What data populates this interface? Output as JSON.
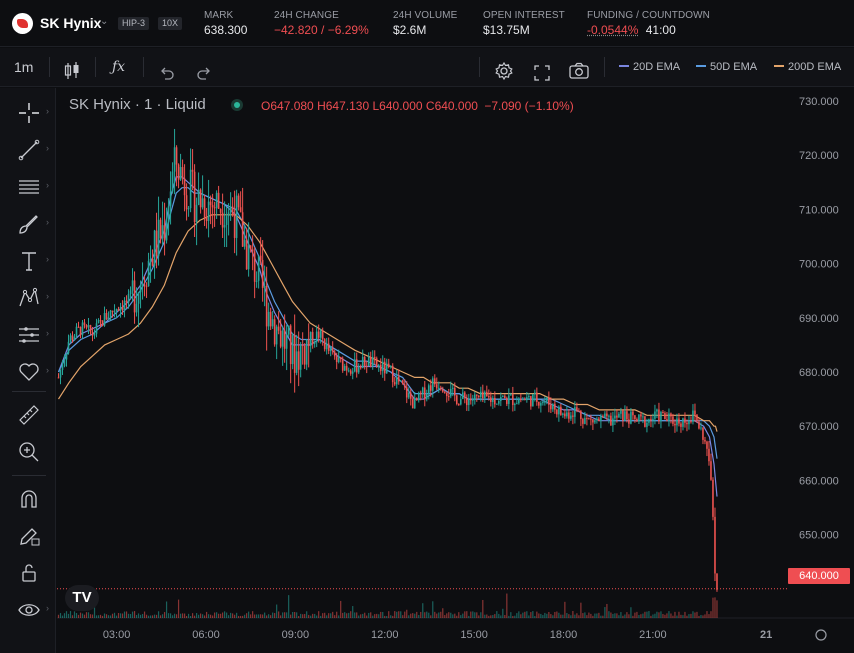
{
  "market": {
    "ticker": "SK Hynix",
    "dex_badge": "HIP-3",
    "leverage_badge": "10X",
    "mark_label": "MARK",
    "mark_value": "638.300",
    "change_label": "24H CHANGE",
    "change_value": "−42.820 / −6.29%",
    "volume_label": "24H VOLUME",
    "volume_value": "$2.6M",
    "oi_label": "OPEN INTEREST",
    "oi_value": "$13.75M",
    "funding_label": "FUNDING / COUNTDOWN",
    "funding_value": "-0.0544%",
    "countdown_value": "41:00"
  },
  "toolbar": {
    "interval": "1m",
    "indicators": [
      {
        "label": "20D EMA",
        "color": "#7b86e0"
      },
      {
        "label": "50D EMA",
        "color": "#5a9be0"
      },
      {
        "label": "200D EMA",
        "color": "#e3a46a"
      }
    ]
  },
  "chart_header": {
    "symbol_line": "SK Hynix · 1 · Liquid",
    "o_label": "O",
    "o_value": "647.080",
    "h_label": "H",
    "h_value": "647.130",
    "l_label": "L",
    "l_value": "640.000",
    "c_label": "C",
    "c_value": "640.000",
    "change": "−7.090 (−1.10%)",
    "logo_text": "TV"
  },
  "colors": {
    "up": "#26a69a",
    "down": "#ef5350",
    "ema20": "#7b86e0",
    "ema50": "#5a9be0",
    "ema200": "#e3a46a",
    "price_line": "#ef4e52"
  },
  "chart_data": {
    "type": "line",
    "title": "SK Hynix · 1 · Liquid",
    "xlabel": "",
    "ylabel": "",
    "x_ticks": [
      "03:00",
      "06:00",
      "09:00",
      "12:00",
      "15:00",
      "18:00",
      "21:00",
      "21"
    ],
    "y_ticks": [
      "730.000",
      "720.000",
      "710.000",
      "700.000",
      "690.000",
      "680.000",
      "670.000",
      "660.000",
      "650.000"
    ],
    "ylim": [
      634.6,
      732.4
    ],
    "xlim": [
      1.0,
      25.5
    ],
    "last_price": "640.000",
    "series": [
      {
        "name": "price",
        "x": [
          1.05,
          1.4,
          1.8,
          2.2,
          2.6,
          3.0,
          3.4,
          3.8,
          4.2,
          4.6,
          4.8,
          5.0,
          5.2,
          5.4,
          5.6,
          5.8,
          6.2,
          6.6,
          7.0,
          7.4,
          7.8,
          8.0,
          8.3,
          8.6,
          8.9,
          9.2,
          9.5,
          9.8,
          10.1,
          10.4,
          10.7,
          11.0,
          11.4,
          11.8,
          12.2,
          12.6,
          13.0,
          13.3,
          13.6,
          13.9,
          14.2,
          14.5,
          14.8,
          15.2,
          15.6,
          16.0,
          16.4,
          16.8,
          17.2,
          17.6,
          18.0,
          18.4,
          18.8,
          19.2,
          19.6,
          20.0,
          20.4,
          20.8,
          21.2,
          21.6,
          22.0,
          22.4,
          22.7,
          22.9,
          23.05,
          23.1,
          23.15
        ],
        "values": [
          679,
          686,
          688,
          687,
          690,
          692,
          693,
          697,
          702,
          707,
          714,
          719,
          716,
          714,
          712,
          712,
          711,
          711,
          709,
          702,
          697,
          693,
          689,
          686,
          683,
          684,
          686,
          687,
          684,
          682,
          681,
          681,
          682,
          681,
          680,
          677,
          674,
          676,
          678,
          678,
          676,
          675,
          675,
          675,
          675,
          675,
          675,
          675,
          675,
          674,
          672,
          673,
          671,
          671,
          671,
          672,
          671,
          671,
          672,
          671,
          671,
          672,
          668,
          663,
          650,
          641,
          640
        ]
      },
      {
        "name": "20D EMA",
        "values": [
          680,
          685,
          687,
          688,
          689,
          691,
          693,
          696,
          701,
          706,
          712,
          716,
          716,
          715,
          714,
          713,
          712,
          711,
          709,
          704,
          699,
          695,
          691,
          688,
          685,
          685,
          685,
          686,
          685,
          683,
          682,
          681,
          681,
          681,
          680,
          678,
          675,
          675,
          676,
          677,
          676,
          676,
          675,
          675,
          675,
          675,
          675,
          675,
          675,
          674,
          673,
          673,
          672,
          671,
          671,
          671,
          671,
          671,
          671,
          671,
          671,
          671,
          670,
          668,
          663,
          660,
          657
        ]
      },
      {
        "name": "50D EMA",
        "values": [
          680,
          684,
          686,
          687,
          689,
          690,
          692,
          695,
          699,
          704,
          709,
          713,
          714,
          714,
          713,
          713,
          712,
          711,
          710,
          706,
          701,
          697,
          693,
          690,
          687,
          686,
          686,
          686,
          685,
          684,
          683,
          682,
          682,
          681,
          680,
          679,
          676,
          676,
          676,
          677,
          676,
          676,
          675,
          675,
          675,
          675,
          675,
          675,
          675,
          675,
          674,
          673,
          672,
          672,
          671,
          671,
          671,
          671,
          671,
          671,
          671,
          671,
          671,
          670,
          668,
          666,
          664
        ]
      },
      {
        "name": "200D EMA",
        "values": [
          675,
          678,
          681,
          683,
          685,
          686,
          687,
          689,
          692,
          696,
          699,
          702,
          704,
          706,
          707,
          708,
          709,
          709,
          709,
          707,
          704,
          702,
          699,
          696,
          693,
          691,
          689,
          688,
          687,
          686,
          685,
          684,
          683,
          682,
          681,
          680,
          679,
          679,
          678,
          678,
          678,
          677,
          677,
          676,
          676,
          676,
          676,
          676,
          676,
          675,
          675,
          674,
          674,
          673,
          673,
          673,
          673,
          672,
          672,
          672,
          672,
          672,
          671,
          671,
          670,
          670,
          669
        ]
      }
    ]
  }
}
